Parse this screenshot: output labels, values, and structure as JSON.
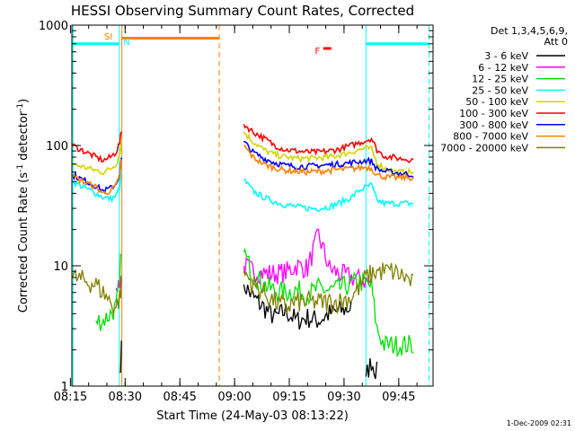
{
  "chart_data": {
    "type": "line",
    "title": "HESSI Observing Summary Count Rates, Corrected",
    "xlabel": "Start Time (24-May-03 08:13:22)",
    "ylabel": "Corrected Count Rate (s^-1 detector^-1)",
    "ylabel_parts": {
      "pre": "Corrected Count Rate (s",
      "sup1": "-1",
      "mid": " detector",
      "sup2": "-1",
      "post": ")"
    },
    "ylog": true,
    "ylim": [
      1,
      1000
    ],
    "y_ticks": [
      {
        "value": 1,
        "label": "1"
      },
      {
        "value": 10,
        "label": "10"
      },
      {
        "value": 100,
        "label": "100"
      },
      {
        "value": 1000,
        "label": "1000"
      }
    ],
    "xlim_minutes": [
      495.4,
      594.4
    ],
    "x_ticks": [
      {
        "minutes": 495,
        "label": "08:15"
      },
      {
        "minutes": 510,
        "label": "08:30"
      },
      {
        "minutes": 525,
        "label": "08:45"
      },
      {
        "minutes": 540,
        "label": "09:00"
      },
      {
        "minutes": 555,
        "label": "09:15"
      },
      {
        "minutes": 570,
        "label": "09:30"
      },
      {
        "minutes": 585,
        "label": "09:45"
      }
    ],
    "legend": {
      "header": [
        "Det 1,3,4,5,6,9,",
        "Att 0"
      ],
      "placement": "right"
    },
    "series": [
      {
        "name": "3 - 6 keV",
        "color": "#000000",
        "x": [
          495.6,
          502,
          504,
          506,
          507.5,
          508.5,
          509,
          542.5,
          545,
          548,
          551,
          554,
          557,
          560,
          563,
          566,
          568.5,
          572,
          574,
          576,
          577.5,
          579,
          581,
          583,
          585,
          587,
          589
        ],
        "y": [
          null,
          null,
          null,
          null,
          null,
          1.3,
          2,
          7,
          5.5,
          4.5,
          3.7,
          4.2,
          3.5,
          3.7,
          3.5,
          4,
          4.2,
          4.5,
          null,
          1.2,
          1.6,
          1.3,
          null,
          null,
          null,
          null,
          null
        ]
      },
      {
        "name": "6 - 12 keV",
        "color": "#ff00ff",
        "x": [
          495.6,
          502,
          504,
          506,
          507.5,
          508.5,
          509,
          542.5,
          545,
          548,
          551,
          554,
          557,
          560,
          563,
          566,
          568.5,
          572,
          574,
          576,
          577.5,
          579,
          581,
          583,
          585,
          587,
          589
        ],
        "y": [
          null,
          null,
          null,
          null,
          6.5,
          7.5,
          8,
          10,
          9,
          8.7,
          8.6,
          8.8,
          10,
          9.5,
          18,
          9.5,
          8.6,
          8,
          7.7,
          7.5,
          7.2,
          null,
          null,
          null,
          null,
          null,
          null
        ]
      },
      {
        "name": "12 - 25 keV",
        "color": "#00e000",
        "x": [
          495.6,
          502,
          504,
          506,
          507.5,
          508.5,
          509,
          542.5,
          545,
          548,
          551,
          554,
          557,
          560,
          563,
          566,
          568.5,
          572,
          574,
          576,
          577.5,
          579,
          581,
          583,
          585,
          587,
          589
        ],
        "y": [
          null,
          3.5,
          3.5,
          4,
          4.5,
          7,
          15,
          13,
          8.5,
          7,
          6.2,
          6,
          6.3,
          5.7,
          6.5,
          6.2,
          6.5,
          7,
          7.5,
          7,
          6.8,
          3,
          2.2,
          2.2,
          2.2,
          2.2,
          2.2
        ]
      },
      {
        "name": "25 - 50 keV",
        "color": "#00ffff",
        "x": [
          495.6,
          502,
          504,
          506,
          507.5,
          508.5,
          509,
          542.5,
          545,
          548,
          551,
          554,
          557,
          560,
          563,
          566,
          568.5,
          572,
          574,
          576,
          577.5,
          579,
          581,
          583,
          585,
          587,
          589
        ],
        "y": [
          50,
          40,
          37,
          36,
          38,
          45,
          60,
          52,
          42,
          37,
          34,
          32,
          31,
          30,
          30,
          31,
          33,
          37,
          42,
          45,
          47,
          35,
          33,
          33,
          33,
          33,
          33
        ]
      },
      {
        "name": "50 - 100 keV",
        "color": "#d4d400",
        "x": [
          495.6,
          502,
          504,
          506,
          507.5,
          508.5,
          509,
          542.5,
          545,
          548,
          551,
          554,
          557,
          560,
          563,
          566,
          568.5,
          572,
          574,
          576,
          577.5,
          579,
          581,
          583,
          585,
          587,
          589
        ],
        "y": [
          70,
          62,
          60,
          64,
          70,
          85,
          108,
          130,
          108,
          92,
          84,
          80,
          78,
          78,
          79,
          80,
          83,
          88,
          92,
          95,
          93,
          72,
          65,
          62,
          60,
          60,
          60
        ]
      },
      {
        "name": "100 - 300 keV",
        "color": "#ff0000",
        "x": [
          495.6,
          502,
          504,
          506,
          507.5,
          508.5,
          509,
          542.5,
          545,
          548,
          551,
          554,
          557,
          560,
          563,
          566,
          568.5,
          572,
          574,
          576,
          577.5,
          579,
          581,
          583,
          585,
          587,
          589
        ],
        "y": [
          100,
          80,
          75,
          80,
          88,
          105,
          130,
          150,
          130,
          115,
          100,
          92,
          90,
          88,
          88,
          90,
          93,
          100,
          105,
          110,
          115,
          92,
          82,
          80,
          78,
          77,
          76
        ]
      },
      {
        "name": "300 - 800 keV",
        "color": "#0000ff",
        "x": [
          495.6,
          502,
          504,
          506,
          507.5,
          508.5,
          509,
          542.5,
          545,
          548,
          551,
          554,
          557,
          560,
          563,
          566,
          568.5,
          572,
          574,
          576,
          577.5,
          579,
          581,
          583,
          585,
          587,
          589
        ],
        "y": [
          57,
          46,
          42,
          44,
          48,
          58,
          78,
          108,
          88,
          78,
          72,
          68,
          67,
          67,
          68,
          69,
          70,
          72,
          73,
          75,
          74,
          64,
          61,
          60,
          59,
          58,
          57
        ]
      },
      {
        "name": "800 - 7000 keV",
        "color": "#ff8000",
        "x": [
          495.6,
          502,
          504,
          506,
          507.5,
          508.5,
          509,
          542.5,
          545,
          548,
          551,
          554,
          557,
          560,
          563,
          566,
          568.5,
          572,
          574,
          576,
          577.5,
          579,
          581,
          583,
          585,
          587,
          589
        ],
        "y": [
          55,
          45,
          40,
          42,
          46,
          56,
          75,
          100,
          80,
          70,
          65,
          62,
          61,
          60,
          61,
          62,
          63,
          64,
          65,
          66,
          65,
          57,
          55,
          54,
          54,
          54,
          54
        ]
      },
      {
        "name": "7000 - 20000 keV",
        "color": "#808000",
        "x": [
          495.6,
          502,
          504,
          506,
          507.5,
          508.5,
          509,
          542.5,
          545,
          548,
          551,
          554,
          557,
          560,
          563,
          566,
          568.5,
          572,
          574,
          576,
          577.5,
          579,
          581,
          583,
          585,
          587,
          589
        ],
        "y": [
          8,
          7,
          6,
          5,
          4.5,
          5.5,
          7,
          9,
          7,
          6,
          5,
          4.5,
          5,
          5,
          5,
          5,
          5,
          5.5,
          6.5,
          8,
          8.5,
          9,
          9,
          9,
          8.5,
          8,
          7
        ]
      }
    ],
    "flags": [
      {
        "label": "SI",
        "color": "#ff8000",
        "x_minutes": 508.2
      },
      {
        "label": "N",
        "color": "#00ffff",
        "x_minutes": 509.0
      },
      {
        "label": "F",
        "color": "#ff0000",
        "x_minutes": 563.0
      }
    ],
    "intervals": [
      {
        "kind": "night",
        "color": "#00ffff",
        "x_start": 495.4,
        "x_end": 508.4,
        "y": 700,
        "bar": true
      },
      {
        "kind": "saa",
        "color": "#ff8000",
        "x_start": 509.1,
        "x_end": 535.8,
        "y": 780,
        "bar": true
      },
      {
        "kind": "flare",
        "color": "#ff0000",
        "x_start": 564.3,
        "x_end": 566.5,
        "y": 640,
        "bar": true
      },
      {
        "kind": "night",
        "color": "#00ffff",
        "x_start": 576.0,
        "x_end": 593.3,
        "y": 700,
        "bar": true
      }
    ],
    "vlines": [
      {
        "x_minutes": 495.7,
        "color": "#00ffff",
        "dashed": false
      },
      {
        "x_minutes": 508.4,
        "color": "#00ffff",
        "dashed": false
      },
      {
        "x_minutes": 509.1,
        "color": "#ff8000",
        "dashed": false
      },
      {
        "x_minutes": 535.8,
        "color": "#ff8000",
        "dashed": true
      },
      {
        "x_minutes": 576.0,
        "color": "#00ffff",
        "dashed": false
      },
      {
        "x_minutes": 593.3,
        "color": "#00ffff",
        "dashed": true
      }
    ]
  },
  "footer": {
    "timestamp": "1-Dec-2009 02:31"
  }
}
